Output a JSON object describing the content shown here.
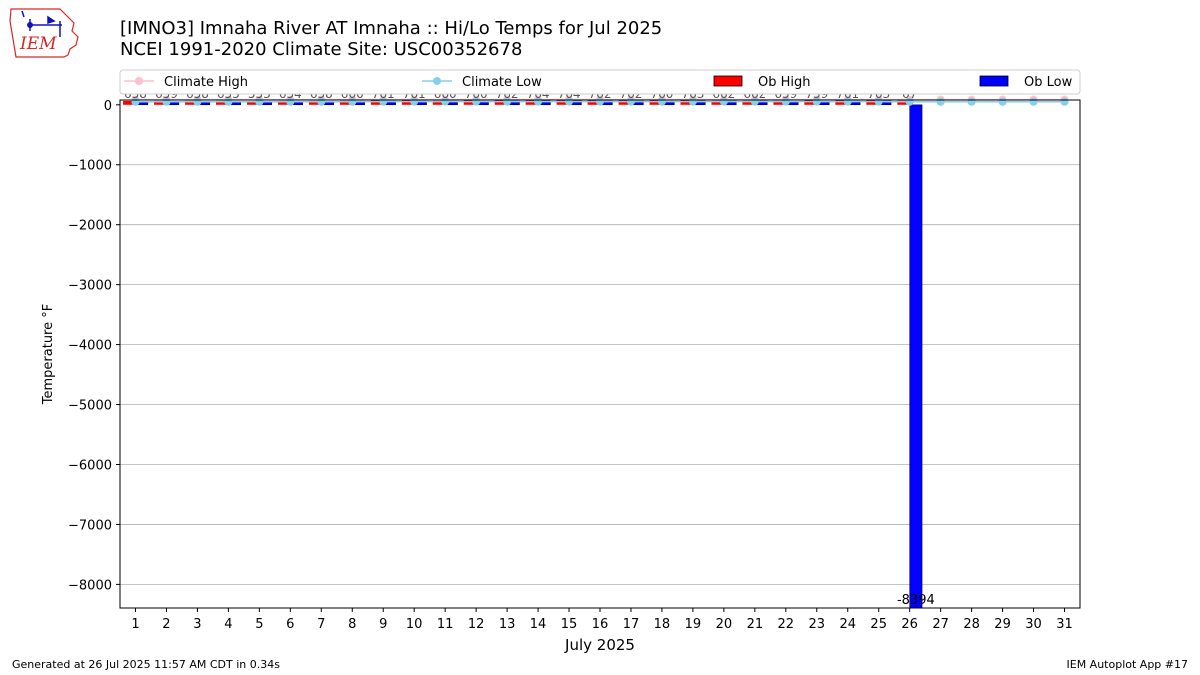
{
  "header": {
    "title_line1": "[IMNO3] Imnaha River  AT Imnaha :: Hi/Lo Temps for Jul 2025",
    "title_line2": "NCEI 1991-2020 Climate Site: USC00352678"
  },
  "logo": {
    "text": "IEM",
    "icon": "iem-iowa-logo-icon"
  },
  "legend": [
    {
      "label": "Climate High",
      "color": "#ffc0cb",
      "kind": "line-marker"
    },
    {
      "label": "Climate Low",
      "color": "#87ceeb",
      "kind": "line-marker"
    },
    {
      "label": "Ob High",
      "color": "#ff0000",
      "kind": "box"
    },
    {
      "label": "Ob Low",
      "color": "#0000ff",
      "kind": "box"
    }
  ],
  "footer": {
    "generated": "Generated at 26 Jul 2025 11:57 AM CDT in 0.34s",
    "app": "IEM Autoplot App #17"
  },
  "chart_data": {
    "type": "bar",
    "xlabel": "July 2025",
    "ylabel": "Temperature °F",
    "ylim": [
      -8394,
      80
    ],
    "xlim": [
      0.5,
      31.5
    ],
    "grid": "horizontal",
    "legend_position": "top",
    "x": [
      1,
      2,
      3,
      4,
      5,
      6,
      7,
      8,
      9,
      10,
      11,
      12,
      13,
      14,
      15,
      16,
      17,
      18,
      19,
      20,
      21,
      22,
      23,
      24,
      25,
      26,
      27,
      28,
      29,
      30,
      31
    ],
    "yticks": [
      0,
      -1000,
      -2000,
      -3000,
      -4000,
      -5000,
      -6000,
      -7000,
      -8000
    ],
    "ytick_labels": [
      "0",
      "−1000",
      "−2000",
      "−3000",
      "−4000",
      "−5000",
      "−6000",
      "−7000",
      "−8000"
    ],
    "ob_high": [
      65,
      65,
      65,
      65,
      55,
      65,
      65,
      66,
      76,
      76,
      66,
      76,
      78,
      78,
      76,
      76,
      76,
      76,
      76,
      66,
      66,
      65,
      75,
      76,
      76,
      67
    ],
    "ob_low": [
      58,
      59,
      58,
      55,
      53,
      54,
      58,
      60,
      61,
      61,
      60,
      60,
      62,
      64,
      64,
      62,
      62,
      60,
      63,
      62,
      62,
      59,
      59,
      61,
      63,
      -8394
    ],
    "data_labels": [
      "658",
      "659",
      "658",
      "655",
      "553",
      "654",
      "658",
      "660",
      "761",
      "761",
      "660",
      "760",
      "762",
      "764",
      "764",
      "762",
      "762",
      "760",
      "763",
      "662",
      "662",
      "659",
      "759",
      "761",
      "763",
      "67"
    ],
    "low_value_label": "-8394",
    "climate_high": [
      86,
      86,
      87,
      87,
      87,
      87,
      88,
      88,
      88,
      88,
      88,
      88,
      88,
      88,
      88,
      88,
      88,
      88,
      88,
      88,
      88,
      87,
      87,
      87,
      87,
      87,
      87,
      86,
      86,
      86,
      86
    ],
    "climate_low": [
      50,
      50,
      50,
      51,
      51,
      51,
      51,
      51,
      52,
      52,
      52,
      52,
      52,
      52,
      52,
      52,
      52,
      52,
      52,
      52,
      52,
      52,
      52,
      52,
      52,
      51,
      51,
      51,
      51,
      51,
      51
    ],
    "colors": {
      "ob_high": "#ff0000",
      "ob_low": "#0000ff",
      "climate_high": "#ffc0cb",
      "climate_low": "#87ceeb",
      "grid": "#b0b0b0"
    }
  }
}
